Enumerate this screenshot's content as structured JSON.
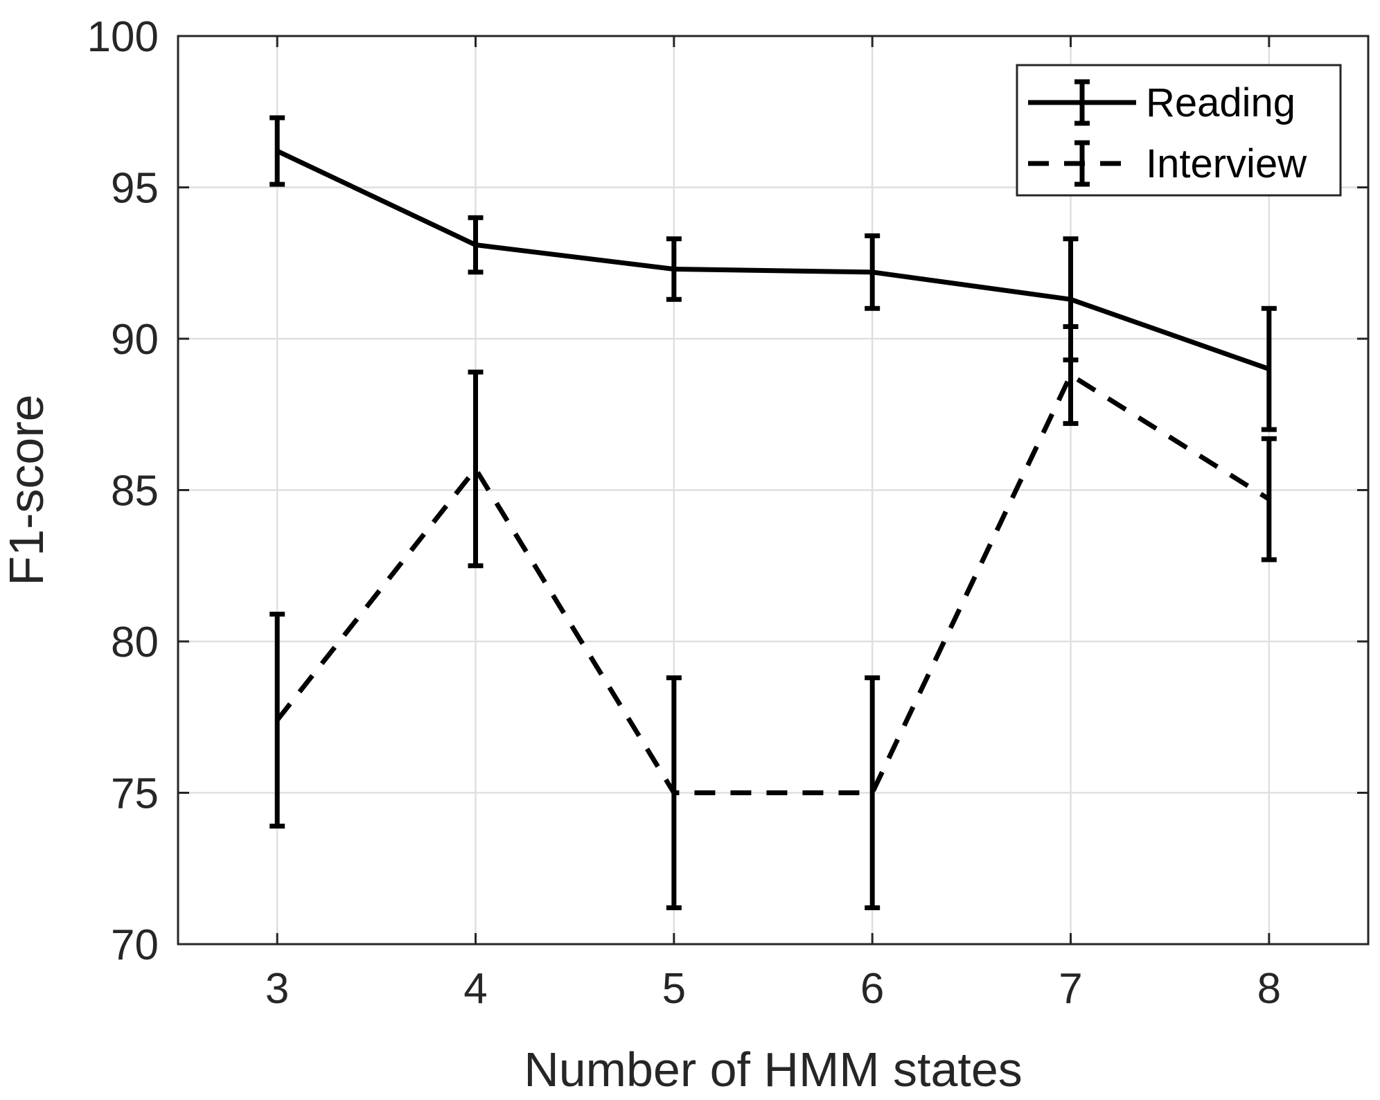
{
  "chart_data": {
    "type": "line",
    "title": "",
    "xlabel": "Number of HMM states",
    "ylabel": "F1-score",
    "x": [
      3,
      4,
      5,
      6,
      7,
      8
    ],
    "xlim": [
      2.5,
      8.5
    ],
    "ylim": [
      70,
      100
    ],
    "xticks": [
      "3",
      "4",
      "5",
      "6",
      "7",
      "8"
    ],
    "yticks": [
      "70",
      "75",
      "80",
      "85",
      "90",
      "95",
      "100"
    ],
    "grid": true,
    "legend_position": "top-right",
    "series": [
      {
        "name": "Reading",
        "style": "solid",
        "color": "#000000",
        "values": [
          96.2,
          93.1,
          92.3,
          92.2,
          91.3,
          89.0
        ],
        "error": [
          1.1,
          0.9,
          1.0,
          1.2,
          2.0,
          2.0
        ]
      },
      {
        "name": "Interview",
        "style": "dashed",
        "color": "#000000",
        "values": [
          77.4,
          85.7,
          75.0,
          75.0,
          88.8,
          84.7
        ],
        "error": [
          3.5,
          3.2,
          3.8,
          3.8,
          1.6,
          2.0
        ]
      }
    ]
  }
}
